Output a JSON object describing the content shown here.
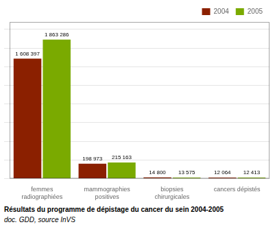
{
  "chart_data": {
    "type": "bar",
    "title": "Résultats du programme de dépistage du cancer du sein 2004-2005",
    "subtitle": "doc. GDD, source InVS",
    "categories": [
      "femmes\nradiographiées",
      "mammographies\npositives",
      "biopsies\nchirurgicales",
      "cancers dépistés"
    ],
    "series": [
      {
        "name": "2004",
        "color": "#8B2000",
        "values": [
          1608397,
          198973,
          14800,
          12064
        ],
        "value_labels": [
          "1 608 397",
          "198 973",
          "14 800",
          "12 064"
        ]
      },
      {
        "name": "2005",
        "color": "#7AAA00",
        "values": [
          1863286,
          215163,
          13575,
          12413
        ],
        "value_labels": [
          "1 863 286",
          "215 163",
          "13 575",
          "12 413"
        ]
      }
    ],
    "ylim": [
      0,
      2100000
    ],
    "yticks": [
      0,
      250000,
      500000,
      750000,
      1000000,
      1250000,
      1500000,
      1750000,
      2000000
    ],
    "grid": true,
    "legend": "upper right",
    "data_labels": true,
    "tick_labels": "x"
  }
}
